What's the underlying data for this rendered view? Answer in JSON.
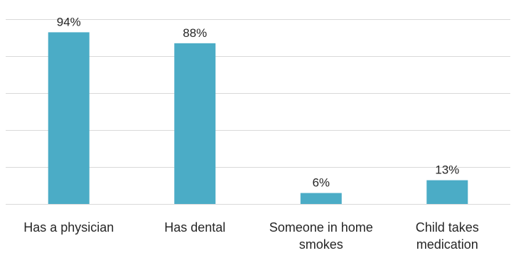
{
  "chart_data": {
    "type": "bar",
    "categories": [
      [
        "Has a physician"
      ],
      [
        "Has dental"
      ],
      [
        "Someone in home",
        "smokes"
      ],
      [
        "Child takes",
        "medication"
      ]
    ],
    "values": [
      94,
      88,
      6,
      13
    ],
    "data_labels": [
      "94%",
      "88%",
      "6%",
      "13%"
    ],
    "ylim": [
      0,
      100
    ],
    "grid": true,
    "legend": "none",
    "bar_color": "#4bacc6"
  }
}
